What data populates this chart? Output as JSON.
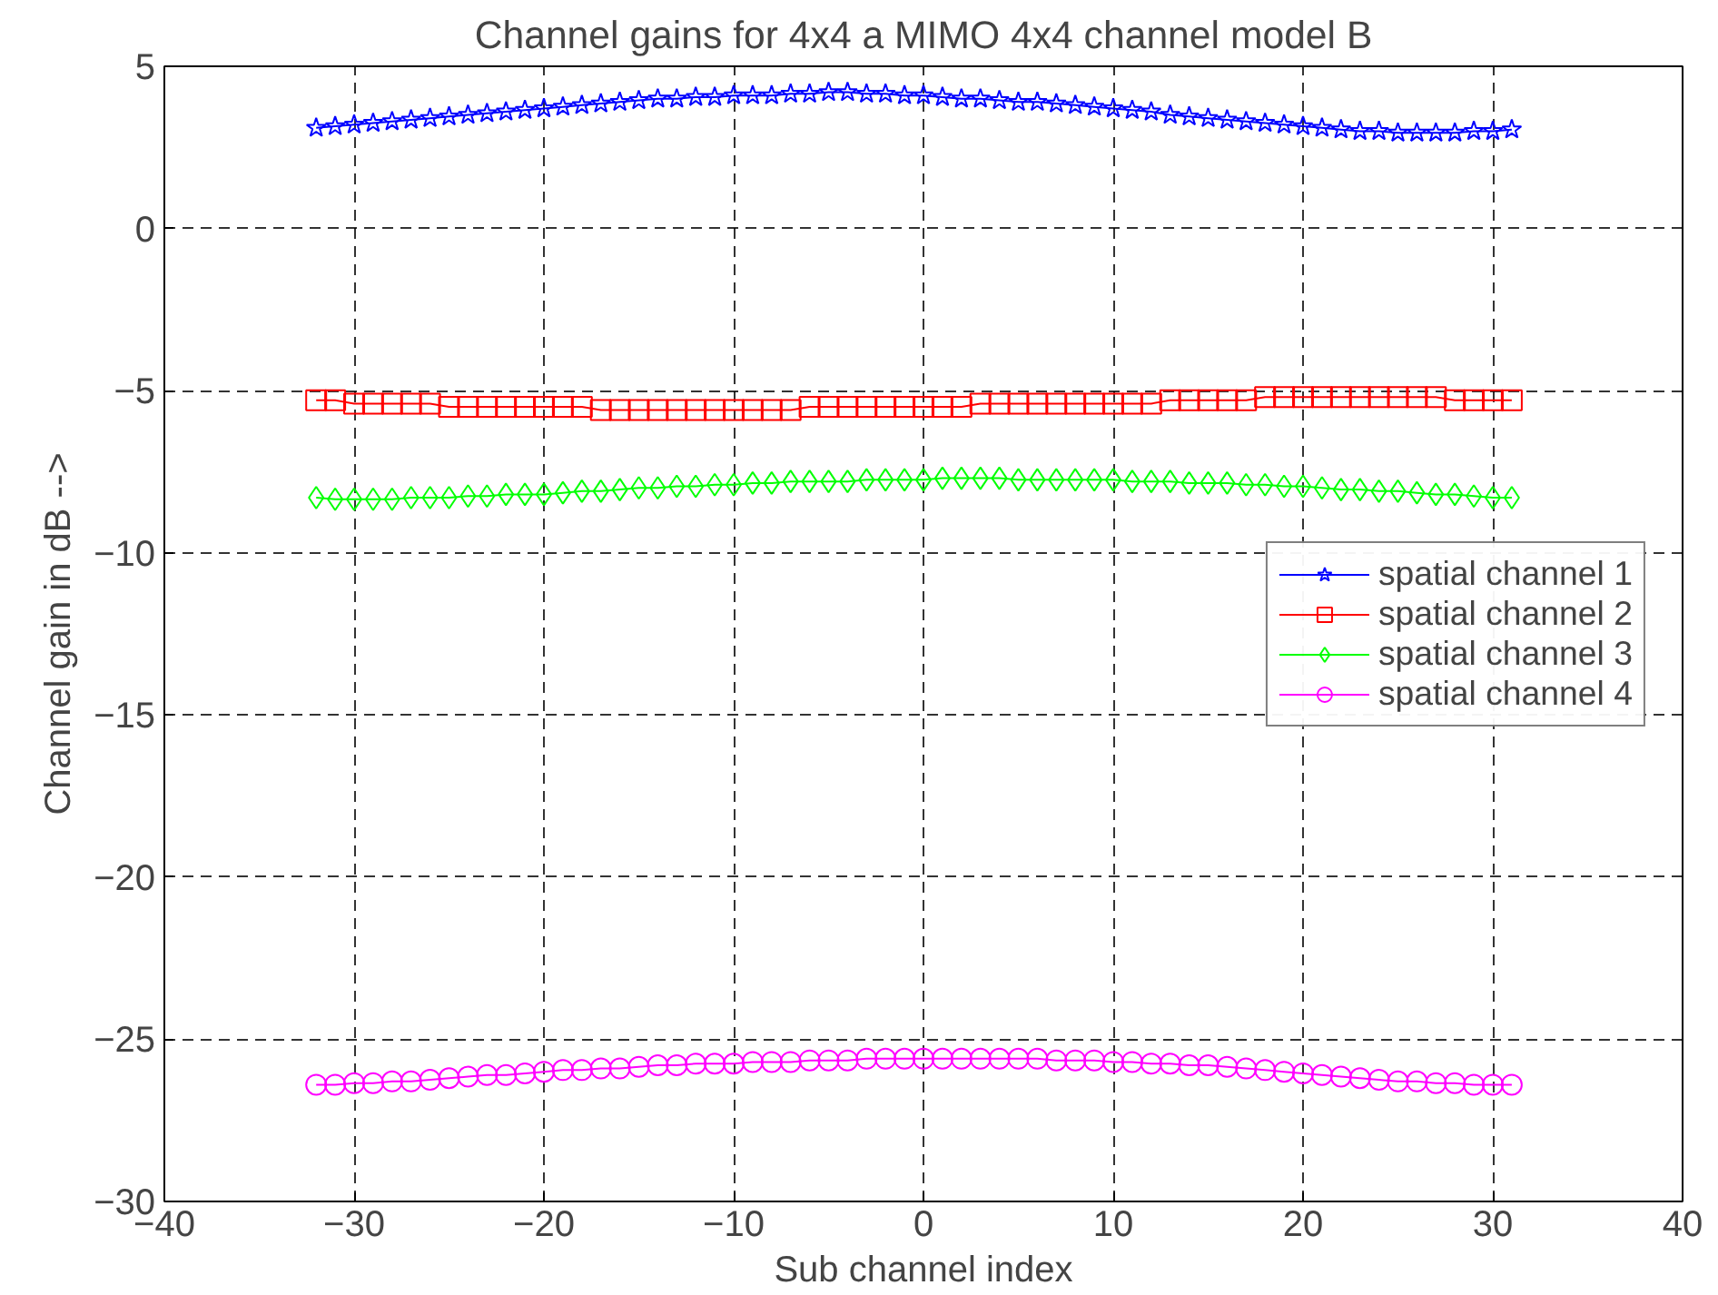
{
  "chart_data": {
    "type": "line",
    "title": "Channel gains for 4x4 a MIMO 4x4 channel model B",
    "xlabel": "Sub channel index",
    "ylabel": "Channel gain in dB -->",
    "x": [
      -32,
      -31,
      -30,
      -29,
      -28,
      -27,
      -26,
      -25,
      -24,
      -23,
      -22,
      -21,
      -20,
      -19,
      -18,
      -17,
      -16,
      -15,
      -14,
      -13,
      -12,
      -11,
      -10,
      -9,
      -8,
      -7,
      -6,
      -5,
      -4,
      -3,
      -2,
      -1,
      0,
      1,
      2,
      3,
      4,
      5,
      6,
      7,
      8,
      9,
      10,
      11,
      12,
      13,
      14,
      15,
      16,
      17,
      18,
      19,
      20,
      21,
      22,
      23,
      24,
      25,
      26,
      27,
      28,
      29,
      30,
      31
    ],
    "series": [
      {
        "name": "spatial channel 1",
        "color": "#0000ff",
        "marker": "star",
        "values": [
          3.1,
          3.15,
          3.2,
          3.25,
          3.3,
          3.35,
          3.4,
          3.45,
          3.5,
          3.55,
          3.6,
          3.65,
          3.7,
          3.75,
          3.8,
          3.85,
          3.9,
          3.95,
          4.0,
          4.0,
          4.05,
          4.05,
          4.1,
          4.1,
          4.1,
          4.15,
          4.15,
          4.2,
          4.2,
          4.15,
          4.15,
          4.1,
          4.1,
          4.05,
          4.0,
          4.0,
          3.95,
          3.9,
          3.9,
          3.85,
          3.8,
          3.75,
          3.7,
          3.65,
          3.6,
          3.5,
          3.45,
          3.4,
          3.35,
          3.3,
          3.25,
          3.2,
          3.15,
          3.1,
          3.05,
          3.0,
          3.0,
          2.95,
          2.95,
          2.95,
          2.95,
          3.0,
          3.0,
          3.05
        ]
      },
      {
        "name": "spatial channel 2",
        "color": "#ff0000",
        "marker": "square",
        "values": [
          -5.3,
          -5.3,
          -5.4,
          -5.4,
          -5.4,
          -5.4,
          -5.4,
          -5.5,
          -5.5,
          -5.5,
          -5.5,
          -5.5,
          -5.5,
          -5.5,
          -5.5,
          -5.6,
          -5.6,
          -5.6,
          -5.6,
          -5.6,
          -5.6,
          -5.6,
          -5.6,
          -5.6,
          -5.6,
          -5.6,
          -5.5,
          -5.5,
          -5.5,
          -5.5,
          -5.5,
          -5.5,
          -5.5,
          -5.5,
          -5.5,
          -5.4,
          -5.4,
          -5.4,
          -5.4,
          -5.4,
          -5.4,
          -5.4,
          -5.4,
          -5.4,
          -5.4,
          -5.3,
          -5.3,
          -5.3,
          -5.3,
          -5.3,
          -5.2,
          -5.2,
          -5.2,
          -5.2,
          -5.2,
          -5.2,
          -5.2,
          -5.2,
          -5.2,
          -5.2,
          -5.3,
          -5.3,
          -5.3,
          -5.3
        ]
      },
      {
        "name": "spatial channel 3",
        "color": "#00ff00",
        "marker": "diamond",
        "values": [
          -8.3,
          -8.35,
          -8.35,
          -8.35,
          -8.35,
          -8.3,
          -8.3,
          -8.3,
          -8.25,
          -8.25,
          -8.2,
          -8.2,
          -8.2,
          -8.15,
          -8.1,
          -8.1,
          -8.05,
          -8.0,
          -8.0,
          -7.95,
          -7.95,
          -7.9,
          -7.9,
          -7.85,
          -7.85,
          -7.8,
          -7.8,
          -7.8,
          -7.8,
          -7.75,
          -7.75,
          -7.75,
          -7.75,
          -7.7,
          -7.7,
          -7.7,
          -7.7,
          -7.75,
          -7.75,
          -7.75,
          -7.75,
          -7.75,
          -7.75,
          -7.8,
          -7.8,
          -7.8,
          -7.85,
          -7.85,
          -7.85,
          -7.9,
          -7.9,
          -7.95,
          -7.95,
          -8.0,
          -8.05,
          -8.05,
          -8.1,
          -8.1,
          -8.15,
          -8.2,
          -8.2,
          -8.25,
          -8.3,
          -8.3
        ]
      },
      {
        "name": "spatial channel 4",
        "color": "#ff00ff",
        "marker": "circle",
        "values": [
          -26.4,
          -26.4,
          -26.35,
          -26.35,
          -26.3,
          -26.3,
          -26.25,
          -26.2,
          -26.15,
          -26.1,
          -26.1,
          -26.05,
          -26.0,
          -25.95,
          -25.95,
          -25.9,
          -25.9,
          -25.85,
          -25.8,
          -25.8,
          -25.75,
          -25.75,
          -25.75,
          -25.7,
          -25.7,
          -25.7,
          -25.65,
          -25.65,
          -25.65,
          -25.6,
          -25.6,
          -25.6,
          -25.6,
          -25.6,
          -25.6,
          -25.6,
          -25.6,
          -25.6,
          -25.6,
          -25.65,
          -25.65,
          -25.65,
          -25.7,
          -25.7,
          -25.75,
          -25.75,
          -25.8,
          -25.8,
          -25.85,
          -25.9,
          -25.95,
          -26.0,
          -26.05,
          -26.1,
          -26.15,
          -26.2,
          -26.25,
          -26.3,
          -26.3,
          -26.35,
          -26.35,
          -26.4,
          -26.4,
          -26.4
        ]
      }
    ],
    "xlim": [
      -40,
      40
    ],
    "ylim": [
      -30,
      5
    ],
    "xticks": [
      -40,
      -30,
      -20,
      -10,
      0,
      10,
      20,
      30,
      40
    ],
    "yticks": [
      -30,
      -25,
      -20,
      -15,
      -10,
      -5,
      0,
      5
    ],
    "grid": true,
    "legend": "right",
    "line_style": "solid"
  }
}
